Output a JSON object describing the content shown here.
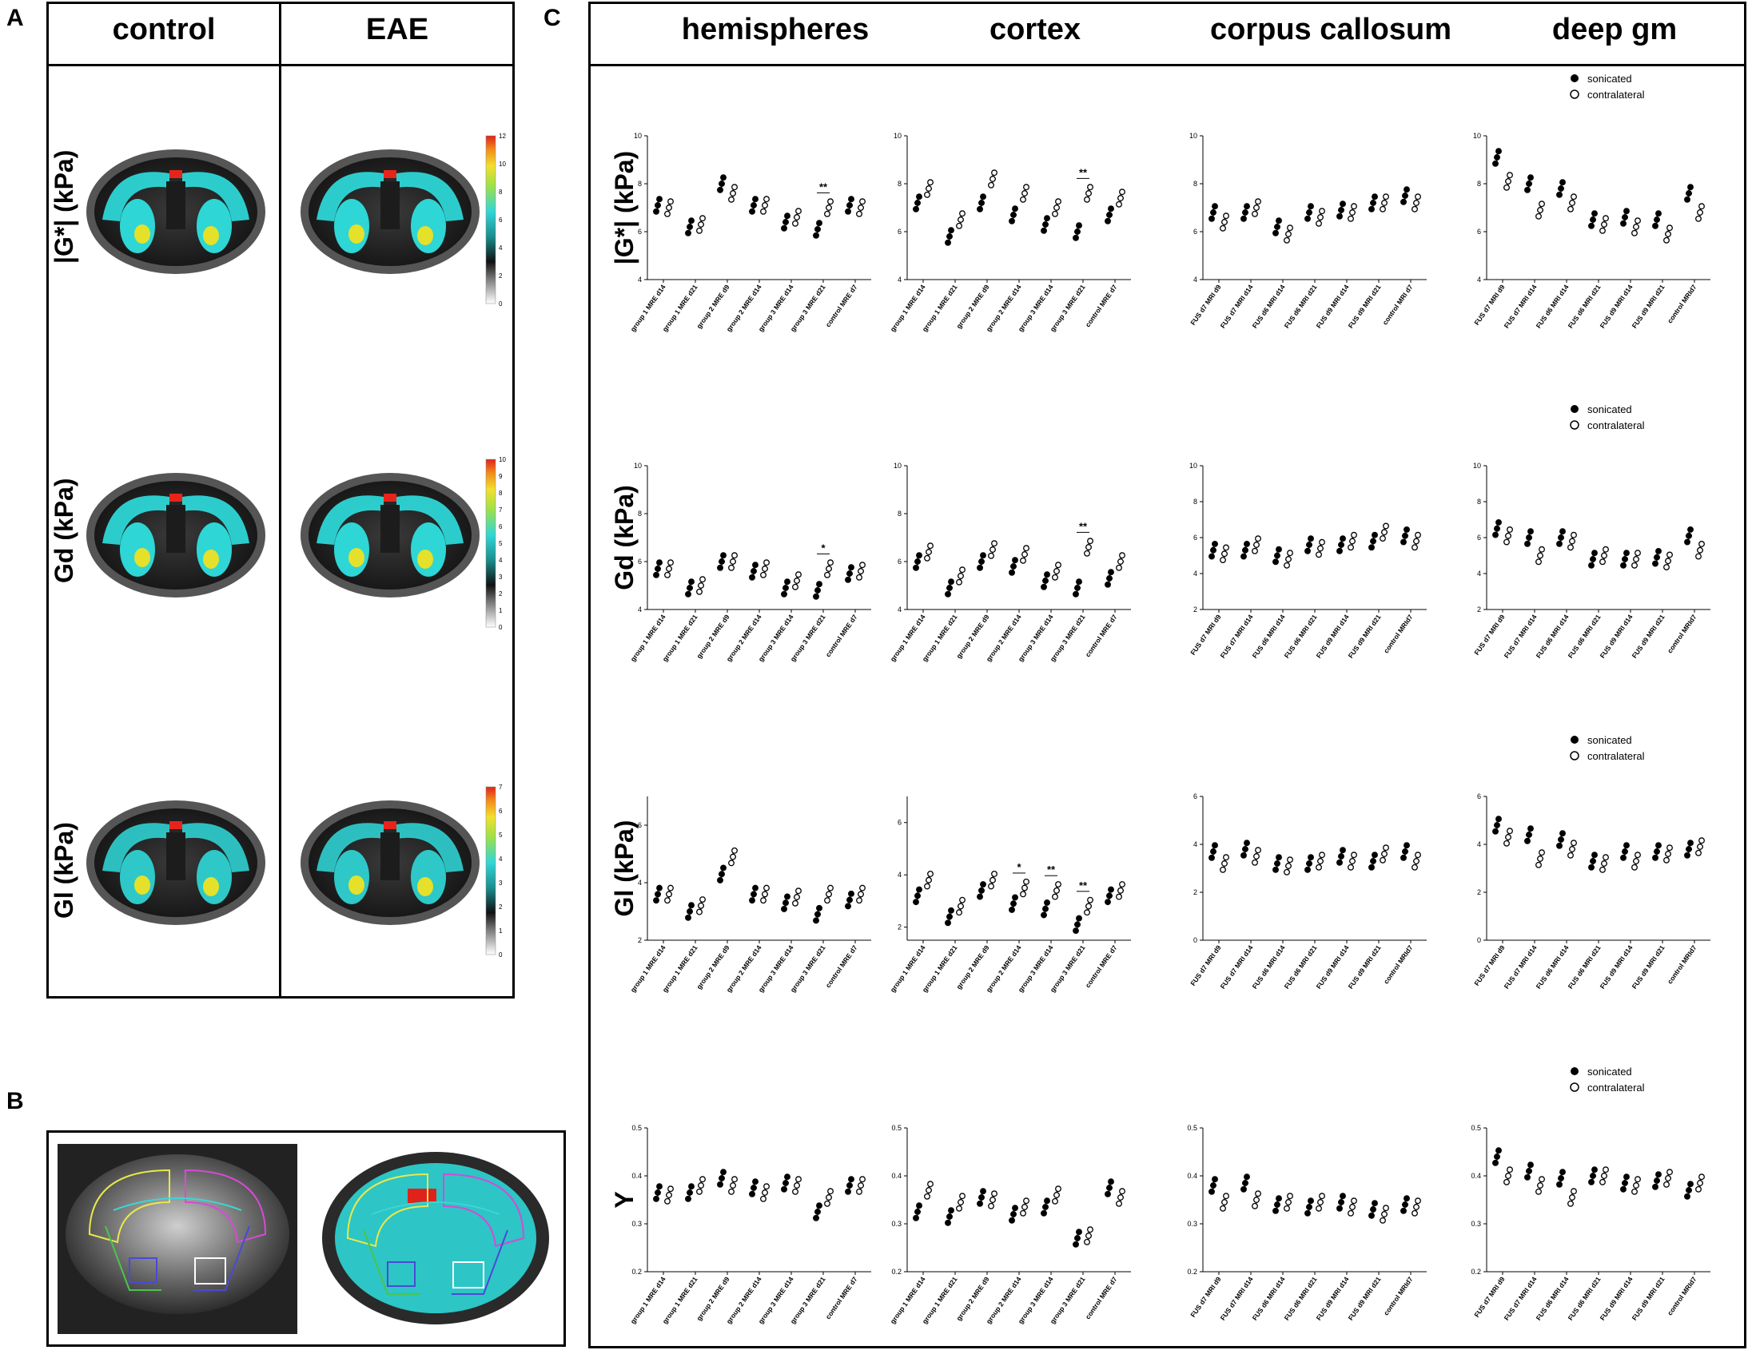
{
  "panel_labels": {
    "a": "A",
    "b": "B",
    "c": "C"
  },
  "panel_a": {
    "col_headers": [
      "control",
      "EAE"
    ],
    "row_labels": [
      "|G*| (kPa)",
      "Gd (kPa)",
      "Gl (kPa)"
    ],
    "colorbars": [
      {
        "ticks": [
          "12",
          "10",
          "8",
          "6",
          "4",
          "2",
          "0"
        ]
      },
      {
        "ticks": [
          "10",
          "9",
          "8",
          "7",
          "6",
          "5",
          "4",
          "3",
          "2",
          "1",
          "0"
        ]
      },
      {
        "ticks": [
          "7",
          "6",
          "5",
          "4",
          "3",
          "2",
          "1",
          "0"
        ]
      }
    ],
    "colors": {
      "brain": "#2ed6d6",
      "hot": "#e8241a",
      "bg": "#3a3a3a"
    }
  },
  "panel_c": {
    "col_headers": [
      "hemispheres",
      "cortex",
      "corpus callosum",
      "deep gm"
    ],
    "legend": {
      "filled": "sonicated",
      "open": "contralateral"
    },
    "row_ylabels": [
      "|G*| (kPa)",
      "Gd (kPa)",
      "Gl (kPa)",
      "Y"
    ]
  },
  "chart_data": [
    {
      "type": "scatter",
      "row": 0,
      "col": 0,
      "ylabel": "|G*| (kPa)",
      "ylim": [
        4,
        10
      ],
      "yticks": [
        "4",
        "6",
        "8",
        "10"
      ],
      "categories": [
        "group 1 MRE d14",
        "group 1 MRE d21",
        "group 2 MRE d9",
        "group 2 MRE d14",
        "group 3 MRE d14",
        "group 3 MRE d21",
        "control MRE d7"
      ],
      "series": [
        {
          "name": "sonicated",
          "values": [
            7.1,
            6.2,
            8.0,
            7.1,
            6.4,
            6.1,
            7.1
          ]
        },
        {
          "name": "contralateral",
          "values": [
            7.0,
            6.3,
            7.6,
            7.1,
            6.6,
            7.0,
            7.0
          ]
        }
      ],
      "annotations": [
        {
          "category": 5,
          "text": "**"
        }
      ]
    },
    {
      "type": "scatter",
      "row": 0,
      "col": 1,
      "ylabel": "",
      "ylim": [
        4,
        10
      ],
      "yticks": [
        "4",
        "6",
        "8",
        "10"
      ],
      "categories": [
        "group 1 MRE d14",
        "group 1 MRE d21",
        "group 2 MRE d9",
        "group 2 MRE d14",
        "group 3 MRE d14",
        "group 3 MRE d21",
        "control MRE d7"
      ],
      "series": [
        {
          "name": "sonicated",
          "values": [
            7.2,
            5.8,
            7.2,
            6.7,
            6.3,
            6.0,
            6.7
          ]
        },
        {
          "name": "contralateral",
          "values": [
            7.8,
            6.5,
            8.2,
            7.6,
            7.0,
            7.6,
            7.4
          ]
        }
      ],
      "annotations": [
        {
          "category": 5,
          "text": "**"
        }
      ]
    },
    {
      "type": "scatter",
      "row": 0,
      "col": 2,
      "ylabel": "",
      "ylim": [
        4,
        10
      ],
      "yticks": [
        "4",
        "6",
        "8",
        "10"
      ],
      "categories": [
        "FUS d7 MRI d9",
        "FUS d7 MRI d14",
        "FUS d6 MRI d14",
        "FUS d6 MRI d21",
        "FUS d9 MRI d14",
        "FUS d9 MRI d21",
        "control MRI d7"
      ],
      "series": [
        {
          "name": "sonicated",
          "values": [
            6.8,
            6.8,
            6.2,
            6.8,
            6.9,
            7.2,
            7.5
          ]
        },
        {
          "name": "contralateral",
          "values": [
            6.4,
            7.0,
            5.9,
            6.6,
            6.8,
            7.2,
            7.2
          ]
        }
      ],
      "annotations": []
    },
    {
      "type": "scatter",
      "row": 0,
      "col": 3,
      "ylabel": "",
      "ylim": [
        4,
        10
      ],
      "yticks": [
        "4",
        "6",
        "8",
        "10"
      ],
      "categories": [
        "FUS d7 MRI d9",
        "FUS d7 MRI d14",
        "FUS d6 MRI d14",
        "FUS d6 MRI d21",
        "FUS d9 MRI d14",
        "FUS d9 MRI d21",
        "control MRId7"
      ],
      "series": [
        {
          "name": "sonicated",
          "values": [
            9.1,
            8.0,
            7.8,
            6.5,
            6.6,
            6.5,
            7.6
          ]
        },
        {
          "name": "contralateral",
          "values": [
            8.1,
            6.9,
            7.2,
            6.3,
            6.2,
            5.9,
            6.8
          ]
        }
      ],
      "annotations": []
    },
    {
      "type": "scatter",
      "row": 1,
      "col": 0,
      "ylabel": "Gd (kPa)",
      "ylim": [
        4,
        10
      ],
      "yticks": [
        "4",
        "6",
        "8",
        "10"
      ],
      "categories": [
        "group 1 MRE d14",
        "group 1 MRE d21",
        "group 2 MRE d9",
        "group 2 MRE d14",
        "group 3 MRE d14",
        "group 3 MRE d21",
        "control MRE d7"
      ],
      "series": [
        {
          "name": "sonicated",
          "values": [
            5.7,
            4.9,
            6.0,
            5.6,
            4.9,
            4.8,
            5.5
          ]
        },
        {
          "name": "contralateral",
          "values": [
            5.7,
            5.0,
            6.0,
            5.7,
            5.2,
            5.7,
            5.6
          ]
        }
      ],
      "annotations": [
        {
          "category": 5,
          "text": "*"
        }
      ]
    },
    {
      "type": "scatter",
      "row": 1,
      "col": 1,
      "ylabel": "",
      "ylim": [
        4,
        10
      ],
      "yticks": [
        "4",
        "6",
        "8",
        "10"
      ],
      "categories": [
        "group 1 MRE d14",
        "group 1 MRE d21",
        "group 2 MRE d9",
        "group 2 MRE d14",
        "group 3 MRE d14",
        "group 3 MRE d21",
        "control MRE d7"
      ],
      "series": [
        {
          "name": "sonicated",
          "values": [
            6.0,
            4.9,
            6.0,
            5.8,
            5.2,
            4.9,
            5.3
          ]
        },
        {
          "name": "contralateral",
          "values": [
            6.4,
            5.4,
            6.5,
            6.3,
            5.6,
            6.6,
            6.0
          ]
        }
      ],
      "annotations": [
        {
          "category": 5,
          "text": "**"
        }
      ]
    },
    {
      "type": "scatter",
      "row": 1,
      "col": 2,
      "ylabel": "",
      "ylim": [
        2,
        10
      ],
      "yticks": [
        "2",
        "4",
        "6",
        "8",
        "10"
      ],
      "categories": [
        "FUS d7 MRI d9",
        "FUS d7 MRI d14",
        "FUS d6 MRI d14",
        "FUS d6 MRI d21",
        "FUS d9 MRI d14",
        "FUS d9 MRI d21",
        "control MRId7"
      ],
      "series": [
        {
          "name": "sonicated",
          "values": [
            5.3,
            5.3,
            5.0,
            5.6,
            5.6,
            5.8,
            6.1
          ]
        },
        {
          "name": "contralateral",
          "values": [
            5.1,
            5.6,
            4.8,
            5.4,
            5.8,
            6.3,
            5.8
          ]
        }
      ],
      "annotations": []
    },
    {
      "type": "scatter",
      "row": 1,
      "col": 3,
      "ylabel": "",
      "ylim": [
        2,
        10
      ],
      "yticks": [
        "2",
        "4",
        "6",
        "8",
        "10"
      ],
      "categories": [
        "FUS d7 MRI d9",
        "FUS d7 MRI d14",
        "FUS d6 MRI d14",
        "FUS d6 MRI d21",
        "FUS d9 MRI d14",
        "FUS d9 MRI d21",
        "control MRId7"
      ],
      "series": [
        {
          "name": "sonicated",
          "values": [
            6.5,
            6.0,
            6.0,
            4.8,
            4.8,
            4.9,
            6.1
          ]
        },
        {
          "name": "contralateral",
          "values": [
            6.1,
            5.0,
            5.8,
            5.0,
            4.8,
            4.7,
            5.3
          ]
        }
      ],
      "annotations": []
    },
    {
      "type": "scatter",
      "row": 2,
      "col": 0,
      "ylabel": "Gl (kPa)",
      "ylim": [
        2,
        7
      ],
      "yticks": [
        "2",
        "4",
        "6"
      ],
      "categories": [
        "group 1 MRE d14",
        "group 1 MRE d21",
        "group 2 MRE d9",
        "group 2 MRE d14",
        "group 3 MRE d14",
        "group 3 MRE d21",
        "control MRE d7"
      ],
      "series": [
        {
          "name": "sonicated",
          "values": [
            3.6,
            3.0,
            4.3,
            3.6,
            3.3,
            2.9,
            3.4
          ]
        },
        {
          "name": "contralateral",
          "values": [
            3.6,
            3.2,
            4.9,
            3.6,
            3.5,
            3.6,
            3.6
          ]
        }
      ],
      "annotations": []
    },
    {
      "type": "scatter",
      "row": 2,
      "col": 1,
      "ylabel": "",
      "ylim": [
        1.5,
        7
      ],
      "yticks": [
        "2",
        "4",
        "6"
      ],
      "categories": [
        "group 1 MRE d14",
        "group 1 MRE d21",
        "group 2 MRE d9",
        "group 2 MRE d14",
        "group 3 MRE d14",
        "group 3 MRE d21",
        "control MRE d7"
      ],
      "series": [
        {
          "name": "sonicated",
          "values": [
            3.2,
            2.4,
            3.4,
            2.9,
            2.7,
            2.1,
            3.2
          ]
        },
        {
          "name": "contralateral",
          "values": [
            3.8,
            2.8,
            3.8,
            3.5,
            3.4,
            2.8,
            3.4
          ]
        }
      ],
      "annotations": [
        {
          "category": 3,
          "text": "*"
        },
        {
          "category": 4,
          "text": "**"
        },
        {
          "category": 5,
          "text": "**"
        }
      ]
    },
    {
      "type": "scatter",
      "row": 2,
      "col": 2,
      "ylabel": "",
      "ylim": [
        0,
        6
      ],
      "yticks": [
        "0",
        "2",
        "4",
        "6"
      ],
      "categories": [
        "FUS d7 MRI d9",
        "FUS d7 MRI d14",
        "FUS d6 MRI d14",
        "FUS d6 MRI d21",
        "FUS d9 MRI d14",
        "FUS d9 MRI d21",
        "control MRId7"
      ],
      "series": [
        {
          "name": "sonicated",
          "values": [
            3.7,
            3.8,
            3.2,
            3.2,
            3.5,
            3.3,
            3.7
          ]
        },
        {
          "name": "contralateral",
          "values": [
            3.2,
            3.5,
            3.1,
            3.3,
            3.3,
            3.6,
            3.3
          ]
        }
      ],
      "annotations": []
    },
    {
      "type": "scatter",
      "row": 2,
      "col": 3,
      "ylabel": "",
      "ylim": [
        0,
        6
      ],
      "yticks": [
        "0",
        "2",
        "4",
        "6"
      ],
      "categories": [
        "FUS d7 MRI d9",
        "FUS d7 MRI d14",
        "FUS d6 MRI d14",
        "FUS d6 MRI d21",
        "FUS d9 MRI d14",
        "FUS d9 MRI d21",
        "control MRId7"
      ],
      "series": [
        {
          "name": "sonicated",
          "values": [
            4.8,
            4.4,
            4.2,
            3.3,
            3.7,
            3.7,
            3.8
          ]
        },
        {
          "name": "contralateral",
          "values": [
            4.3,
            3.4,
            3.8,
            3.2,
            3.3,
            3.6,
            3.9
          ]
        }
      ],
      "annotations": []
    },
    {
      "type": "scatter",
      "row": 3,
      "col": 0,
      "ylabel": "Y",
      "ylim": [
        0.2,
        0.5
      ],
      "yticks": [
        "0.2",
        "0.3",
        "0.4",
        "0.5"
      ],
      "categories": [
        "group 1 MRE d14",
        "group 1 MRE d21",
        "group 2 MRE d9",
        "group 2 MRE d14",
        "group 3 MRE d14",
        "group 3 MRE d21",
        "control MRE d7"
      ],
      "series": [
        {
          "name": "sonicated",
          "values": [
            0.365,
            0.365,
            0.395,
            0.375,
            0.385,
            0.325,
            0.38
          ]
        },
        {
          "name": "contralateral",
          "values": [
            0.36,
            0.38,
            0.38,
            0.365,
            0.38,
            0.355,
            0.38
          ]
        }
      ],
      "annotations": []
    },
    {
      "type": "scatter",
      "row": 3,
      "col": 1,
      "ylabel": "",
      "ylim": [
        0.2,
        0.5
      ],
      "yticks": [
        "0.2",
        "0.3",
        "0.4",
        "0.5"
      ],
      "categories": [
        "group 1 MRE d14",
        "group 1 MRE d21",
        "group 2 MRE d9",
        "group 2 MRE d14",
        "group 3 MRE d14",
        "group 3 MRE d21",
        "control MRE d7"
      ],
      "series": [
        {
          "name": "sonicated",
          "values": [
            0.325,
            0.315,
            0.355,
            0.32,
            0.335,
            0.27,
            0.375
          ]
        },
        {
          "name": "contralateral",
          "values": [
            0.37,
            0.345,
            0.35,
            0.335,
            0.36,
            0.275,
            0.355
          ]
        }
      ],
      "annotations": []
    },
    {
      "type": "scatter",
      "row": 3,
      "col": 2,
      "ylabel": "",
      "ylim": [
        0.2,
        0.5
      ],
      "yticks": [
        "0.2",
        "0.3",
        "0.4",
        "0.5"
      ],
      "categories": [
        "FUS d7 MRI d9",
        "FUS d7 MRI d14",
        "FUS d6 MRI d14",
        "FUS d6 MRI d21",
        "FUS d9 MRI d14",
        "FUS d9 MRI d21",
        "control MRId7"
      ],
      "series": [
        {
          "name": "sonicated",
          "values": [
            0.38,
            0.385,
            0.34,
            0.335,
            0.345,
            0.33,
            0.34
          ]
        },
        {
          "name": "contralateral",
          "values": [
            0.345,
            0.35,
            0.345,
            0.345,
            0.335,
            0.32,
            0.335
          ]
        }
      ],
      "annotations": []
    },
    {
      "type": "scatter",
      "row": 3,
      "col": 3,
      "ylabel": "",
      "ylim": [
        0.2,
        0.5
      ],
      "yticks": [
        "0.2",
        "0.3",
        "0.4",
        "0.5"
      ],
      "categories": [
        "FUS d7 MRI d9",
        "FUS d7 MRI d14",
        "FUS d6 MRI d14",
        "FUS d6 MRI d21",
        "FUS d9 MRI d14",
        "FUS d9 MRI d21",
        "control MRId7"
      ],
      "series": [
        {
          "name": "sonicated",
          "values": [
            0.44,
            0.41,
            0.395,
            0.4,
            0.385,
            0.39,
            0.37
          ]
        },
        {
          "name": "contralateral",
          "values": [
            0.4,
            0.38,
            0.355,
            0.4,
            0.38,
            0.395,
            0.385
          ]
        }
      ],
      "annotations": []
    }
  ]
}
